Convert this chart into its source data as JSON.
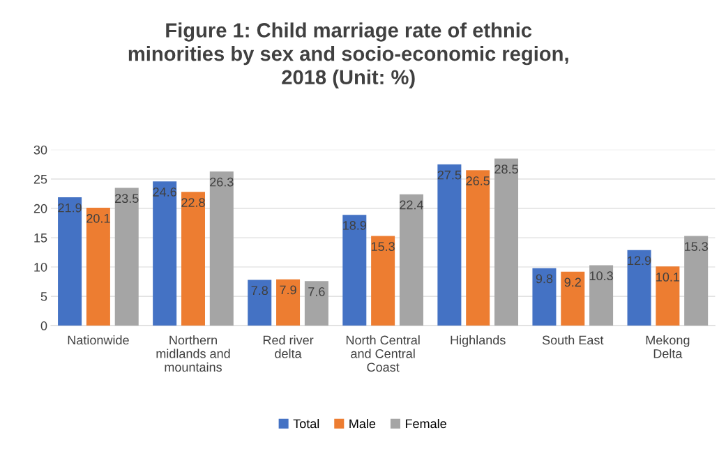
{
  "chart_data": {
    "type": "bar",
    "title": "Figure 1: Child marriage rate of ethnic\nminorities by sex and socio-economic region,\n2018 (Unit: %)",
    "categories": [
      "Nationwide",
      "Northern\nmidlands and\nmountains",
      "Red river\ndelta",
      "North Central\nand Central\nCoast",
      "Highlands",
      "South East",
      "Mekong\nDelta"
    ],
    "series": [
      {
        "name": "Total",
        "color": "#4472c4",
        "values": [
          21.9,
          24.6,
          7.8,
          18.9,
          27.5,
          9.8,
          12.9
        ]
      },
      {
        "name": "Male",
        "color": "#ed7d31",
        "values": [
          20.1,
          22.8,
          7.9,
          15.3,
          26.5,
          9.2,
          10.1
        ]
      },
      {
        "name": "Female",
        "color": "#a5a5a5",
        "values": [
          23.5,
          26.3,
          7.6,
          22.4,
          28.5,
          10.3,
          15.3
        ]
      }
    ],
    "ylim": [
      0,
      30
    ],
    "yticks": [
      0,
      5,
      10,
      15,
      20,
      25,
      30
    ],
    "grid": "y",
    "legend": "bottom",
    "data_labels": true
  }
}
